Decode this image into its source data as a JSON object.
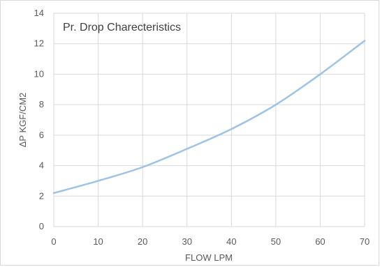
{
  "chart_data": {
    "type": "line",
    "title": "Pr. Drop Charecteristics",
    "xlabel": "FLOW LPM",
    "ylabel": "ΔP KGF/CM2",
    "xlim": [
      0,
      70
    ],
    "ylim": [
      0,
      14
    ],
    "x_ticks": [
      0,
      10,
      20,
      30,
      40,
      50,
      60,
      70
    ],
    "y_ticks": [
      0,
      2,
      4,
      6,
      8,
      10,
      12,
      14
    ],
    "grid": true,
    "series": [
      {
        "x": [
          0,
          10,
          20,
          30,
          40,
          50,
          60,
          70
        ],
        "values": [
          2.2,
          3.0,
          3.9,
          5.1,
          6.4,
          8.0,
          10.0,
          12.2
        ]
      }
    ],
    "colors": {
      "line": "#9dc3e6",
      "grid": "#d9d9d9",
      "text": "#595959"
    }
  }
}
